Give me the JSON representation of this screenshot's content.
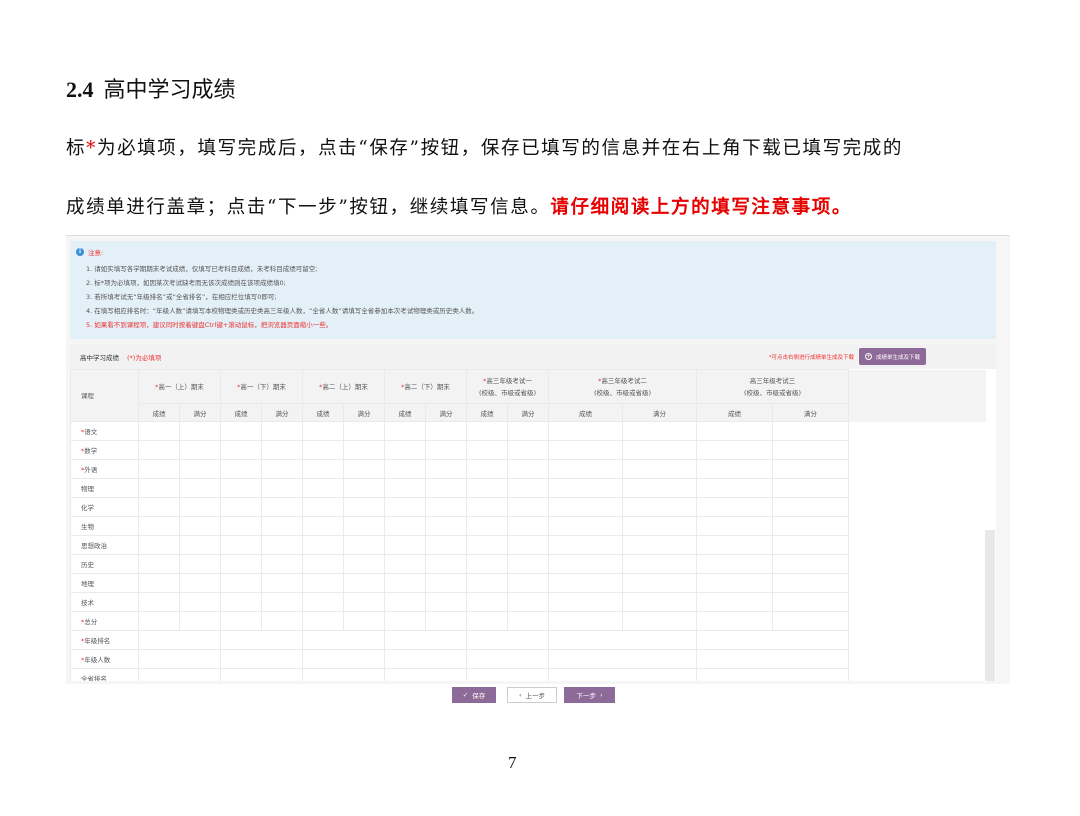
{
  "heading": {
    "number": "2.4",
    "title": "高中学习成绩"
  },
  "para1": {
    "a": "标",
    "star": "*",
    "b": "为必填项，填写完成后，点击“保存”按钮，保存已填写的信息并在右上角下载已填写完成的"
  },
  "para2": {
    "a": "成绩单进行盖章；点击“下一步”按钮，继续填写信息。",
    "warn": "请仔细阅读上方的填写注意事项。"
  },
  "notice": {
    "title": "注意:",
    "items": [
      "1. 请如实填写各学期期末考试成绩，仅填写已考科目成绩，未考科目成绩可留空;",
      "2. 标*项为必填项，如因某次考试缺考而无该次成绩则在该项成绩填0;",
      "3. 若所填考试无“年级排名”或“全省排名”，在相应栏位填写0即可;",
      "4. 在填写相应排名时：“年级人数”请填写本校物理类或历史类高三年级人数，“全省人数”请填写全省参加本次考试物理类或历史类人数。",
      "5. 如果看不到课程项，建议同时按着键盘Ctrl键+滚动鼠标，把浏览器页面缩小一些。"
    ]
  },
  "panel": {
    "title": "高中学习成绩",
    "required_note": "(*)为必填项",
    "hint": "*可点击右侧进行成绩单生成及下载",
    "generate_button": "成绩单生成及下载"
  },
  "table": {
    "course_header": "课程",
    "exams": [
      {
        "name": "高一（上）期末",
        "required": true,
        "sub": ""
      },
      {
        "name": "高一（下）期末",
        "required": true,
        "sub": ""
      },
      {
        "name": "高二（上）期末",
        "required": true,
        "sub": ""
      },
      {
        "name": "高二（下）期末",
        "required": true,
        "sub": ""
      },
      {
        "name": "高三年级考试一",
        "required": true,
        "sub": "(校级、市级或省级)"
      },
      {
        "name": "高三年级考试二",
        "required": true,
        "sub": "(校级、市级或省级)"
      },
      {
        "name": "高三年级考试三",
        "required": false,
        "sub": "(校级、市级或省级)"
      }
    ],
    "score_label": "成绩",
    "full_label": "满分",
    "rows": [
      {
        "name": "语文",
        "required": true,
        "merged": false
      },
      {
        "name": "数学",
        "required": true,
        "merged": false
      },
      {
        "name": "外语",
        "required": true,
        "merged": false
      },
      {
        "name": "物理",
        "required": false,
        "merged": false
      },
      {
        "name": "化学",
        "required": false,
        "merged": false
      },
      {
        "name": "生物",
        "required": false,
        "merged": false
      },
      {
        "name": "思想政治",
        "required": false,
        "merged": false
      },
      {
        "name": "历史",
        "required": false,
        "merged": false
      },
      {
        "name": "地理",
        "required": false,
        "merged": false
      },
      {
        "name": "技术",
        "required": false,
        "merged": false
      },
      {
        "name": "总分",
        "required": true,
        "merged": false
      },
      {
        "name": "年级排名",
        "required": true,
        "merged": true
      },
      {
        "name": "年级人数",
        "required": true,
        "merged": true
      },
      {
        "name": "全省排名",
        "required": false,
        "merged": true
      }
    ]
  },
  "buttons": {
    "save": "保存",
    "prev": "上一步",
    "next": "下一步"
  },
  "page_number": "7",
  "colors": {
    "accent": "#8e6a98",
    "required": "#e33333",
    "notice_bg": "#e4f0f7"
  }
}
